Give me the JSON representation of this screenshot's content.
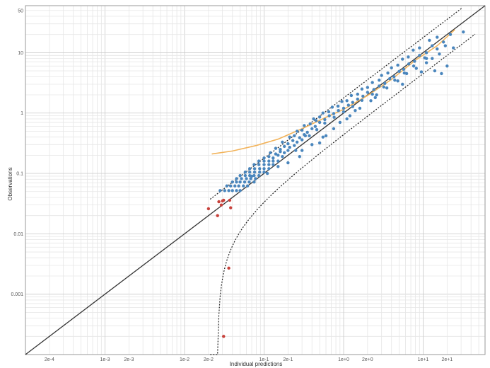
{
  "chart_data": {
    "type": "scatter",
    "title": "",
    "xlabel": "Individual predictions",
    "ylabel": "Observations",
    "x_scale": "log",
    "y_scale": "log",
    "xlim": [
      0.0001,
      60
    ],
    "ylim": [
      0.0001,
      60
    ],
    "grid": true,
    "x_tick_labels": [
      {
        "value": 0.0002,
        "label": "2e-4"
      },
      {
        "value": 0.001,
        "label": "1e-3"
      },
      {
        "value": 0.002,
        "label": "2e-3"
      },
      {
        "value": 0.01,
        "label": "1e-2"
      },
      {
        "value": 0.02,
        "label": "2e-2"
      },
      {
        "value": 0.1,
        "label": "1e-1"
      },
      {
        "value": 0.2,
        "label": "2e-1"
      },
      {
        "value": 1,
        "label": "1e+0"
      },
      {
        "value": 2,
        "label": "2e+0"
      },
      {
        "value": 10,
        "label": "1e+1"
      },
      {
        "value": 20,
        "label": "2e+1"
      }
    ],
    "y_tick_labels": [
      {
        "value": 0.001,
        "label": "0.001"
      },
      {
        "value": 0.01,
        "label": "0.01"
      },
      {
        "value": 0.1,
        "label": "0.1"
      },
      {
        "value": 1,
        "label": "1"
      },
      {
        "value": 10,
        "label": "10"
      },
      {
        "value": 50,
        "label": "50"
      }
    ],
    "identity_line": {
      "color": "#333333"
    },
    "prediction_interval": {
      "color": "#222222",
      "upper_factor": 1.78,
      "lower_factor": 0.45,
      "lower_offset": 0.026
    },
    "spline": {
      "color": "#f2b35a",
      "points": [
        [
          0.022,
          0.21
        ],
        [
          0.04,
          0.235
        ],
        [
          0.08,
          0.29
        ],
        [
          0.15,
          0.37
        ],
        [
          0.3,
          0.55
        ],
        [
          0.6,
          0.85
        ],
        [
          1.0,
          1.15
        ],
        [
          2.0,
          1.95
        ],
        [
          4.0,
          3.6
        ],
        [
          8.0,
          7.5
        ],
        [
          15,
          13
        ],
        [
          25,
          24
        ]
      ]
    },
    "series": [
      {
        "name": "",
        "color": "#4a86bd",
        "points": [
          [
            0.028,
            0.052
          ],
          [
            0.032,
            0.052
          ],
          [
            0.036,
            0.052
          ],
          [
            0.04,
            0.052
          ],
          [
            0.045,
            0.052
          ],
          [
            0.05,
            0.052
          ],
          [
            0.034,
            0.062
          ],
          [
            0.038,
            0.062
          ],
          [
            0.043,
            0.062
          ],
          [
            0.048,
            0.062
          ],
          [
            0.055,
            0.062
          ],
          [
            0.062,
            0.062
          ],
          [
            0.04,
            0.072
          ],
          [
            0.045,
            0.072
          ],
          [
            0.05,
            0.072
          ],
          [
            0.057,
            0.072
          ],
          [
            0.065,
            0.072
          ],
          [
            0.075,
            0.072
          ],
          [
            0.045,
            0.082
          ],
          [
            0.052,
            0.082
          ],
          [
            0.06,
            0.082
          ],
          [
            0.068,
            0.082
          ],
          [
            0.078,
            0.082
          ],
          [
            0.05,
            0.092
          ],
          [
            0.058,
            0.092
          ],
          [
            0.066,
            0.092
          ],
          [
            0.075,
            0.092
          ],
          [
            0.086,
            0.092
          ],
          [
            0.058,
            0.105
          ],
          [
            0.066,
            0.105
          ],
          [
            0.076,
            0.105
          ],
          [
            0.088,
            0.105
          ],
          [
            0.1,
            0.105
          ],
          [
            0.066,
            0.12
          ],
          [
            0.076,
            0.12
          ],
          [
            0.088,
            0.12
          ],
          [
            0.1,
            0.12
          ],
          [
            0.115,
            0.12
          ],
          [
            0.075,
            0.14
          ],
          [
            0.086,
            0.14
          ],
          [
            0.1,
            0.14
          ],
          [
            0.115,
            0.14
          ],
          [
            0.13,
            0.14
          ],
          [
            0.086,
            0.16
          ],
          [
            0.1,
            0.16
          ],
          [
            0.115,
            0.16
          ],
          [
            0.13,
            0.16
          ],
          [
            0.15,
            0.16
          ],
          [
            0.1,
            0.18
          ],
          [
            0.115,
            0.19
          ],
          [
            0.13,
            0.18
          ],
          [
            0.15,
            0.2
          ],
          [
            0.17,
            0.19
          ],
          [
            0.12,
            0.22
          ],
          [
            0.14,
            0.21
          ],
          [
            0.16,
            0.23
          ],
          [
            0.18,
            0.22
          ],
          [
            0.2,
            0.24
          ],
          [
            0.14,
            0.26
          ],
          [
            0.16,
            0.25
          ],
          [
            0.18,
            0.28
          ],
          [
            0.21,
            0.27
          ],
          [
            0.24,
            0.29
          ],
          [
            0.17,
            0.33
          ],
          [
            0.2,
            0.31
          ],
          [
            0.23,
            0.35
          ],
          [
            0.26,
            0.33
          ],
          [
            0.3,
            0.36
          ],
          [
            0.21,
            0.4
          ],
          [
            0.24,
            0.42
          ],
          [
            0.28,
            0.39
          ],
          [
            0.32,
            0.44
          ],
          [
            0.37,
            0.42
          ],
          [
            0.26,
            0.5
          ],
          [
            0.3,
            0.52
          ],
          [
            0.35,
            0.48
          ],
          [
            0.4,
            0.55
          ],
          [
            0.46,
            0.53
          ],
          [
            0.32,
            0.62
          ],
          [
            0.38,
            0.66
          ],
          [
            0.44,
            0.6
          ],
          [
            0.5,
            0.7
          ],
          [
            0.58,
            0.68
          ],
          [
            0.42,
            0.8
          ],
          [
            0.5,
            0.86
          ],
          [
            0.58,
            0.78
          ],
          [
            0.66,
            0.9
          ],
          [
            0.76,
            0.85
          ],
          [
            0.55,
            1.0
          ],
          [
            0.65,
            1.05
          ],
          [
            0.75,
            0.98
          ],
          [
            0.86,
            1.1
          ],
          [
            1.0,
            1.05
          ],
          [
            0.72,
            1.25
          ],
          [
            0.85,
            1.3
          ],
          [
            1.0,
            1.2
          ],
          [
            1.15,
            1.35
          ],
          [
            1.3,
            1.28
          ],
          [
            0.95,
            1.55
          ],
          [
            1.1,
            1.6
          ],
          [
            1.3,
            1.5
          ],
          [
            1.5,
            1.7
          ],
          [
            1.7,
            1.62
          ],
          [
            1.25,
            1.95
          ],
          [
            1.5,
            2.05
          ],
          [
            1.75,
            1.9
          ],
          [
            2.0,
            2.2
          ],
          [
            2.3,
            2.05
          ],
          [
            1.7,
            2.5
          ],
          [
            2.0,
            2.65
          ],
          [
            2.4,
            2.45
          ],
          [
            2.8,
            2.8
          ],
          [
            3.2,
            2.7
          ],
          [
            2.3,
            3.2
          ],
          [
            2.8,
            3.5
          ],
          [
            3.3,
            3.1
          ],
          [
            3.8,
            3.7
          ],
          [
            4.4,
            3.5
          ],
          [
            3.0,
            4.2
          ],
          [
            3.6,
            4.6
          ],
          [
            4.3,
            4.0
          ],
          [
            5.0,
            4.9
          ],
          [
            5.8,
            4.6
          ],
          [
            4.0,
            5.6
          ],
          [
            4.8,
            6.2
          ],
          [
            5.7,
            5.3
          ],
          [
            6.6,
            6.5
          ],
          [
            7.6,
            6.0
          ],
          [
            5.5,
            7.8
          ],
          [
            6.5,
            8.5
          ],
          [
            7.8,
            7.2
          ],
          [
            9.0,
            9.0
          ],
          [
            10.5,
            8.2
          ],
          [
            7.5,
            11
          ],
          [
            9.0,
            12
          ],
          [
            11,
            10
          ],
          [
            13,
            13
          ],
          [
            15,
            11.5
          ],
          [
            12,
            16
          ],
          [
            15,
            18
          ],
          [
            18,
            15
          ],
          [
            22,
            20
          ],
          [
            0.33,
            0.42
          ],
          [
            0.45,
            0.75
          ],
          [
            0.15,
            0.13
          ],
          [
            0.25,
            0.24
          ],
          [
            0.07,
            0.09
          ],
          [
            0.11,
            0.1
          ],
          [
            0.9,
            0.7
          ],
          [
            1.2,
            0.9
          ],
          [
            1.6,
            1.2
          ],
          [
            2.2,
            1.6
          ],
          [
            2.6,
            2.0
          ],
          [
            3.5,
            2.6
          ],
          [
            4.8,
            3.4
          ],
          [
            6.2,
            4.5
          ],
          [
            8.2,
            5.5
          ],
          [
            11,
            8.0
          ],
          [
            1.4,
            1.1
          ],
          [
            2.5,
            1.8
          ],
          [
            5.5,
            3.0
          ],
          [
            0.5,
            0.32
          ],
          [
            0.6,
            0.42
          ],
          [
            0.28,
            0.19
          ],
          [
            0.2,
            0.15
          ],
          [
            0.3,
            0.24
          ],
          [
            0.4,
            0.3
          ],
          [
            0.55,
            0.4
          ],
          [
            0.75,
            0.55
          ],
          [
            1.1,
            0.8
          ],
          [
            14,
            5.0
          ],
          [
            17,
            4.5
          ],
          [
            20,
            6.0
          ],
          [
            11,
            6.8
          ],
          [
            9.5,
            4.8
          ],
          [
            13,
            8.0
          ],
          [
            16,
            9.5
          ],
          [
            19,
            13
          ],
          [
            24,
            12
          ],
          [
            32,
            22
          ]
        ]
      },
      {
        "name": "",
        "color": "#c8413b",
        "points": [
          [
            0.02,
            0.026
          ],
          [
            0.027,
            0.034
          ],
          [
            0.029,
            0.03
          ],
          [
            0.031,
            0.036
          ],
          [
            0.037,
            0.036
          ],
          [
            0.038,
            0.027
          ],
          [
            0.026,
            0.02
          ],
          [
            0.03,
            0.035
          ],
          [
            0.036,
            0.0027
          ],
          [
            0.031,
            0.0002
          ]
        ]
      }
    ]
  }
}
